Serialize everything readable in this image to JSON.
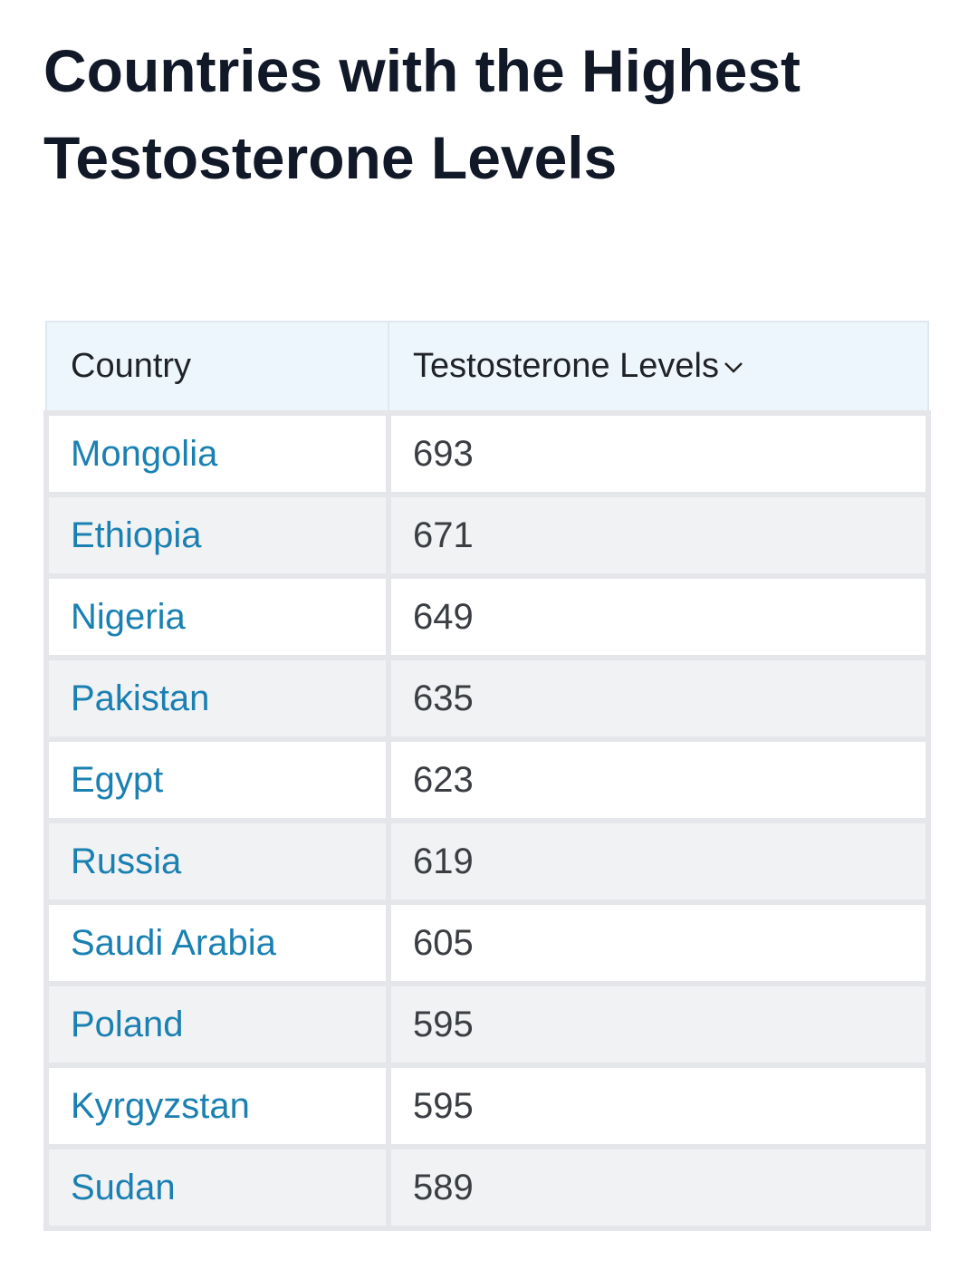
{
  "header": {
    "title": "Countries with the Highest Testosterone Levels"
  },
  "table": {
    "columns": [
      "Country",
      "Testosterone Levels"
    ],
    "rows": [
      [
        "Mongolia",
        693
      ],
      [
        "Ethiopia",
        671
      ],
      [
        "Nigeria",
        649
      ],
      [
        "Pakistan",
        635
      ],
      [
        "Egypt",
        623
      ],
      [
        "Russia",
        619
      ],
      [
        "Saudi Arabia",
        605
      ],
      [
        "Poland",
        595
      ],
      [
        "Kyrgyzstan",
        595
      ],
      [
        "Sudan",
        589
      ]
    ]
  }
}
